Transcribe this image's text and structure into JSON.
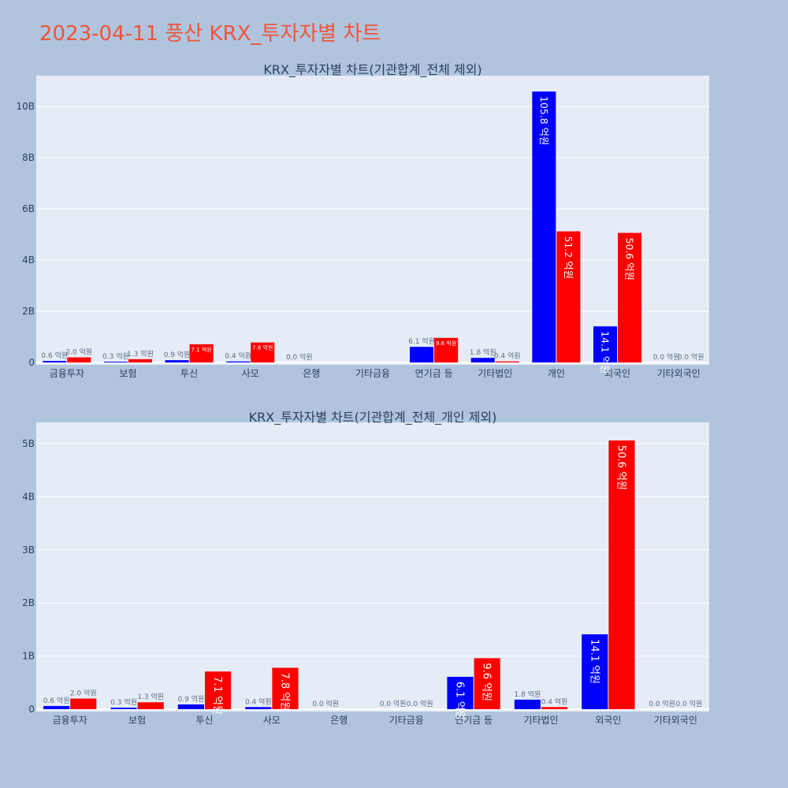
{
  "page": {
    "title": "2023-04-11 풍산 KRX_투자자별 차트"
  },
  "colors": {
    "buy": "#0000ff",
    "sell": "#ff0000",
    "title": "#ef553b",
    "background": "#b0c4de",
    "plot_background": "#e5ecf6"
  },
  "chart_data": [
    {
      "type": "bar",
      "title": "KRX_투자자별 차트(기관합계_전체 제외)",
      "categories": [
        "금융투자",
        "보험",
        "투신",
        "사모",
        "은행",
        "기타금융",
        "연기금 등",
        "기타법인",
        "개인",
        "외국인",
        "기타외국인"
      ],
      "series": [
        {
          "values": [
            0.06,
            0.03,
            0.09,
            0.04,
            0.0,
            0.0,
            0.61,
            0.18,
            10.58,
            1.41,
            0.0
          ],
          "labels": [
            "0.6 억원",
            "0.3 억원",
            "0.9 억원",
            "0.4 억원",
            "0.0 억원",
            "",
            "6.1 억원",
            "1.8 억원",
            "105.8 억원",
            "14.1 억원",
            "0.0 억원"
          ]
        },
        {
          "values": [
            0.2,
            0.13,
            0.71,
            0.78,
            0.0,
            0.0,
            0.96,
            0.04,
            5.12,
            5.06,
            0.0
          ],
          "labels": [
            "2.0 억원",
            "1.3 억원",
            "7.1 억원",
            "7.8 억원",
            "",
            "",
            "9.6 억원",
            "0.4 억원",
            "51.2 억원",
            "50.6 억원",
            "0.0 억원"
          ]
        }
      ],
      "ylim": [
        0,
        11.2
      ],
      "ytick_values": [
        0,
        2,
        4,
        6,
        8,
        10
      ],
      "ytick_labels": [
        "0",
        "2B",
        "4B",
        "6B",
        "8B",
        "10B"
      ],
      "grid": true
    },
    {
      "type": "bar",
      "title": "KRX_투자자별 차트(기관합계_전체_개인 제외)",
      "categories": [
        "금융투자",
        "보험",
        "투신",
        "사모",
        "은행",
        "기타금융",
        "연기금 등",
        "기타법인",
        "외국인",
        "기타외국인"
      ],
      "series": [
        {
          "values": [
            0.06,
            0.03,
            0.09,
            0.04,
            0.0,
            0.0,
            0.61,
            0.18,
            1.41,
            0.0
          ],
          "labels": [
            "0.6 억원",
            "0.3 억원",
            "0.9 억원",
            "0.4 억원",
            "0.0 억원",
            "0.0 억원",
            "6.1 억원",
            "1.8 억원",
            "14.1 억원",
            "0.0 억원"
          ]
        },
        {
          "values": [
            0.2,
            0.13,
            0.71,
            0.78,
            0.0,
            0.0,
            0.96,
            0.04,
            5.06,
            0.0
          ],
          "labels": [
            "2.0 억원",
            "1.3 억원",
            "7.1 억원",
            "7.8 억원",
            "",
            "0.0 억원",
            "9.6 억원",
            "0.4 억원",
            "50.6 억원",
            "0.0 억원"
          ]
        }
      ],
      "ylim": [
        0,
        5.4
      ],
      "ytick_values": [
        0,
        1,
        2,
        3,
        4,
        5
      ],
      "ytick_labels": [
        "0",
        "1B",
        "2B",
        "3B",
        "4B",
        "5B"
      ],
      "grid": true
    }
  ]
}
